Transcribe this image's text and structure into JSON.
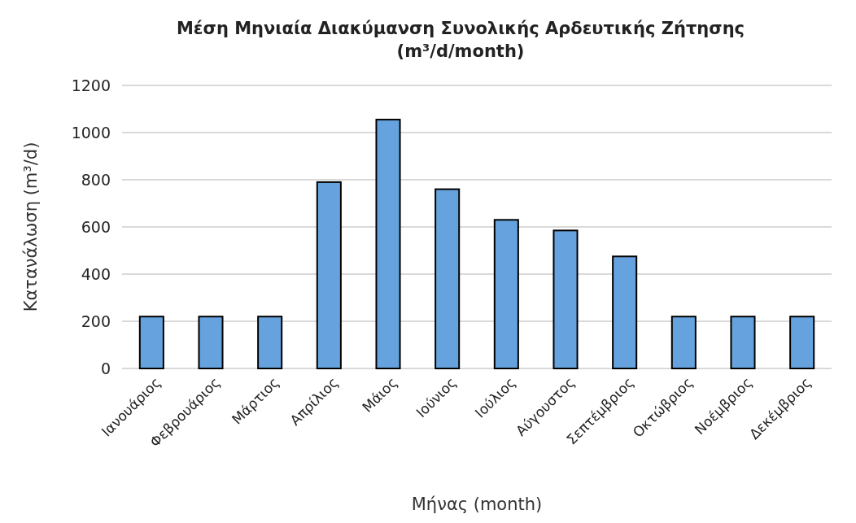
{
  "chart_data": {
    "type": "bar",
    "title": "Μέση Μηνιαία Διακύμανση Συνολικής Αρδευτικής Ζήτησης\n(m³/d/month)",
    "xlabel": "Μήνας (month)",
    "ylabel": "Κατανάλωση (m³/d)",
    "categories": [
      "Ιανουάριος",
      "Φεβρουάριος",
      "Μάρτιος",
      "Απρίλιος",
      "Μάιος",
      "Ιούνιος",
      "Ιούλιος",
      "Αύγουστος",
      "Σεπτέμβριος",
      "Οκτώβριος",
      "Νοέμβριος",
      "Δεκέμβριος"
    ],
    "values": [
      220,
      220,
      220,
      790,
      1055,
      760,
      630,
      585,
      475,
      220,
      220,
      220
    ],
    "color": "#66a3de",
    "ylim": [
      0,
      1200
    ],
    "yticks": [
      0,
      200,
      400,
      600,
      800,
      1000,
      1200
    ],
    "grid": "y"
  }
}
